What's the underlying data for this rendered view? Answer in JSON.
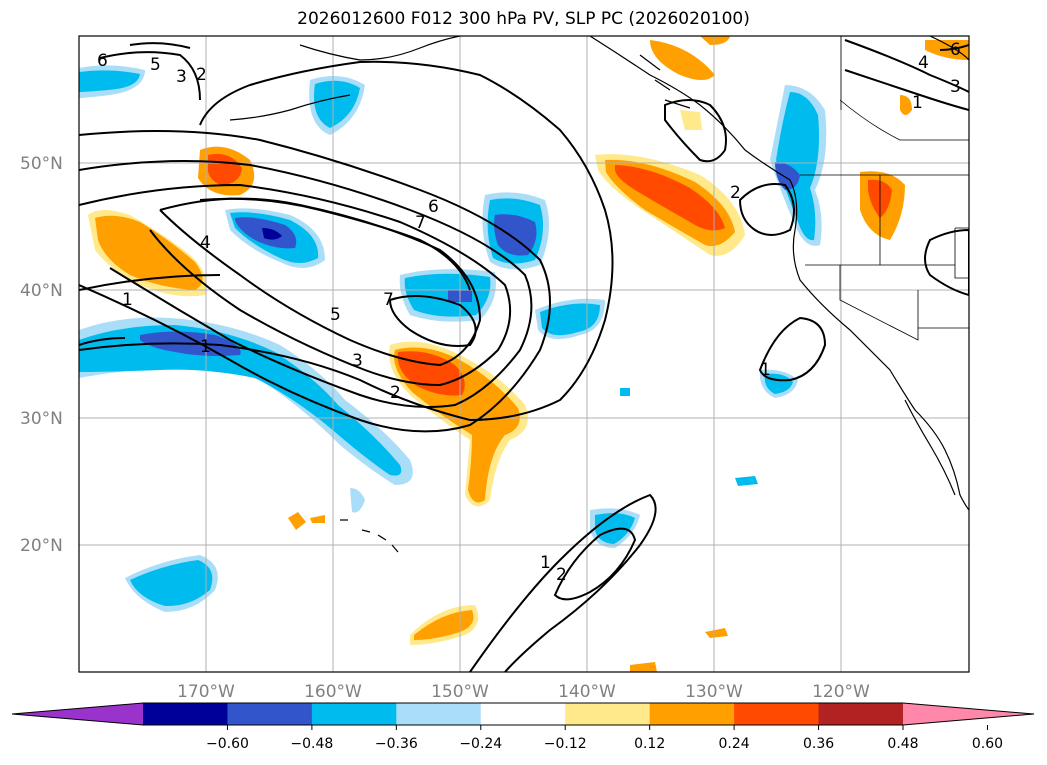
{
  "title": "2026012600 F012 300 hPa PV, SLP PC (2026020100)",
  "map": {
    "lat_labels": [
      {
        "value": 50,
        "label": "50°N"
      },
      {
        "value": 40,
        "label": "40°N"
      },
      {
        "value": 30,
        "label": "30°N"
      },
      {
        "value": 20,
        "label": "20°N"
      }
    ],
    "lon_labels": [
      {
        "value": -170,
        "label": "170°W"
      },
      {
        "value": -160,
        "label": "160°W"
      },
      {
        "value": -150,
        "label": "150°W"
      },
      {
        "value": -140,
        "label": "140°W"
      },
      {
        "value": -130,
        "label": "130°W"
      },
      {
        "value": -120,
        "label": "120°W"
      }
    ],
    "contour_labels": [
      "6",
      "5",
      "3",
      "2",
      "7",
      "6",
      "4",
      "1",
      "1",
      "5",
      "7",
      "3",
      "2",
      "1",
      "2",
      "1",
      "2",
      "4",
      "3",
      "1",
      "6"
    ]
  },
  "colorbar": {
    "ticks": [
      "−0.60",
      "−0.48",
      "−0.36",
      "−0.24",
      "−0.12",
      "0.12",
      "0.24",
      "0.36",
      "0.48",
      "0.60"
    ],
    "colors": [
      "#9933cc",
      "#000099",
      "#3355cc",
      "#00bbee",
      "#aaddf7",
      "#ffffff",
      "#ffe98a",
      "#ffa000",
      "#ff4a00",
      "#b22222",
      "#ff88aa"
    ]
  }
}
